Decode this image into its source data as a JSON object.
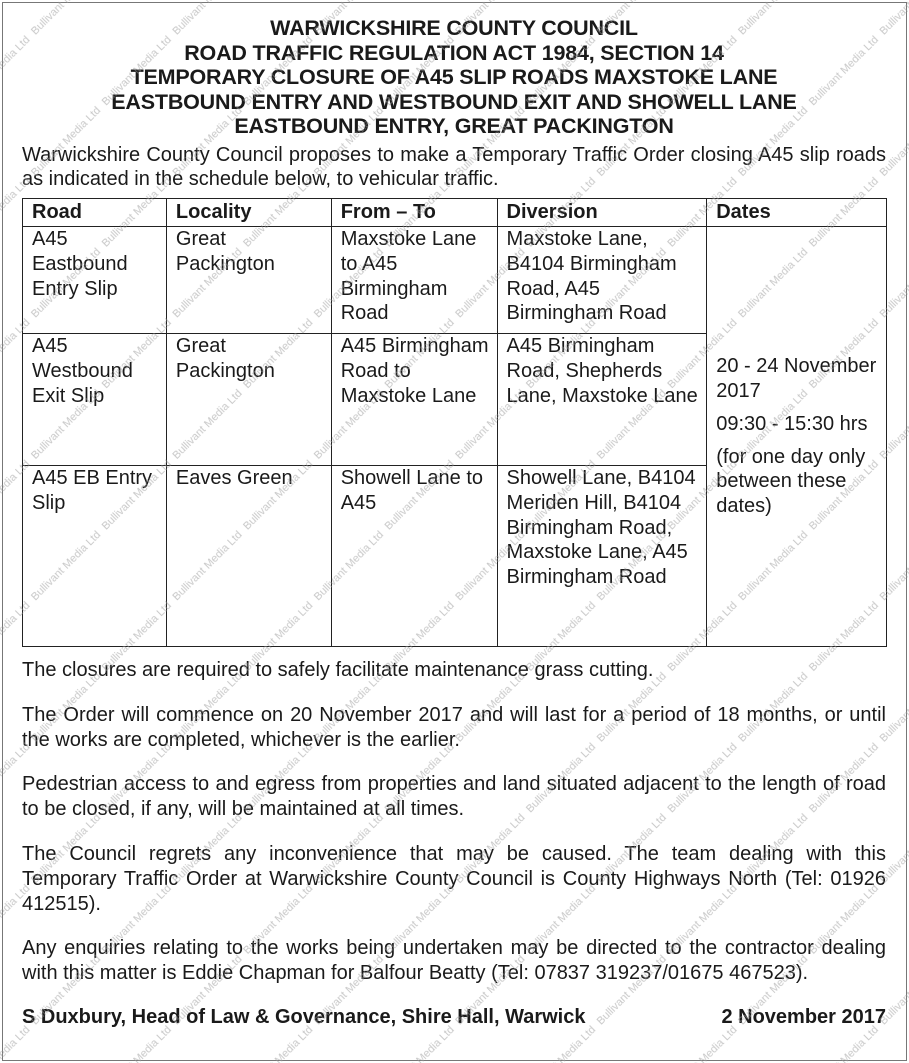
{
  "watermark": "Bullivant Media Ltd",
  "title_lines": [
    "WARWICKSHIRE COUNTY COUNCIL",
    "ROAD TRAFFIC REGULATION ACT 1984, SECTION 14",
    "TEMPORARY CLOSURE OF A45 SLIP ROADS MAXSTOKE LANE",
    "EASTBOUND ENTRY AND WESTBOUND EXIT AND SHOWELL LANE",
    "EASTBOUND ENTRY, GREAT PACKINGTON"
  ],
  "intro": "Warwickshire County Council proposes to make a Temporary Traffic Order closing A45 slip roads as indicated in the schedule below, to vehicular traffic.",
  "table": {
    "headers": [
      "Road",
      "Locality",
      "From – To",
      "Diversion",
      "Dates"
    ],
    "rows": [
      {
        "road": "A45 Eastbound Entry Slip",
        "locality": "Great Packington",
        "from_to": "Maxstoke Lane to A45 Birmingham Road",
        "diversion": "Maxstoke Lane, B4104 Birmingham Road, A45 Birmingham Road"
      },
      {
        "road": "A45 Westbound Exit Slip",
        "locality": "Great Packington",
        "from_to": "A45 Birmingham Road to Maxstoke Lane",
        "diversion": "A45 Birmingham Road, Shepherds Lane, Maxstoke Lane"
      },
      {
        "road": "A45 EB Entry Slip",
        "locality": "Eaves Green",
        "from_to": "Showell Lane to A45",
        "diversion": "Showell Lane, B4104 Meriden Hill, B4104 Birmingham Road, Maxstoke Lane, A45 Birmingham Road"
      }
    ],
    "dates": {
      "range": "20 - 24 November 2017",
      "times": "09:30 - 15:30 hrs",
      "note": "(for one day only between these dates)"
    }
  },
  "paragraphs": [
    "The closures are required to safely facilitate maintenance grass cutting.",
    "The Order will commence on 20 November 2017 and will last for a period of 18 months, or until the works are completed, whichever is the earlier.",
    "Pedestrian access to and egress from properties and land situated adjacent to the length of road to be closed, if any, will be maintained at all times.",
    "The Council regrets any inconvenience that may be caused. The team dealing with this Temporary Traffic Order at Warwickshire County Council is County Highways North (Tel: 01926 412515).",
    "Any enquiries relating to the works being undertaken may be directed to the contractor dealing with this matter is Eddie Chapman for Balfour Beatty (Tel: 07837 319237/01675 467523)."
  ],
  "signature": "S Duxbury, Head of Law & Governance, Shire Hall, Warwick",
  "date": "2 November 2017"
}
